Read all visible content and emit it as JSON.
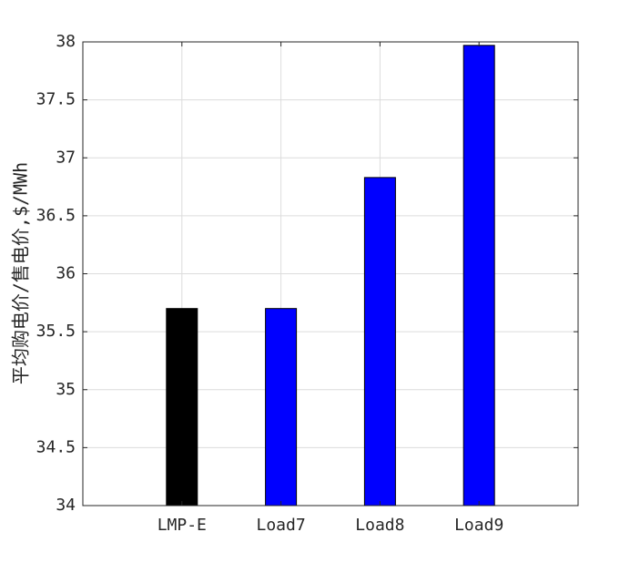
{
  "chart_data": {
    "type": "bar",
    "title": "",
    "xlabel": "",
    "ylabel": "平均购电价/售电价,$/MWh",
    "categories": [
      "LMP-E",
      "Load7",
      "Load8",
      "Load9"
    ],
    "values": [
      35.7,
      35.7,
      36.83,
      37.97
    ],
    "bar_colors": [
      "#000000",
      "#0000ff",
      "#0000ff",
      "#0000ff"
    ],
    "ylim": [
      34,
      38
    ],
    "yticks": [
      34,
      34.5,
      35,
      35.5,
      36,
      36.5,
      37,
      37.5,
      38
    ],
    "ytick_labels": [
      "34",
      "34.5",
      "35",
      "35.5",
      "36",
      "36.5",
      "37",
      "37.5",
      "38"
    ],
    "grid": true,
    "legend": "none"
  }
}
